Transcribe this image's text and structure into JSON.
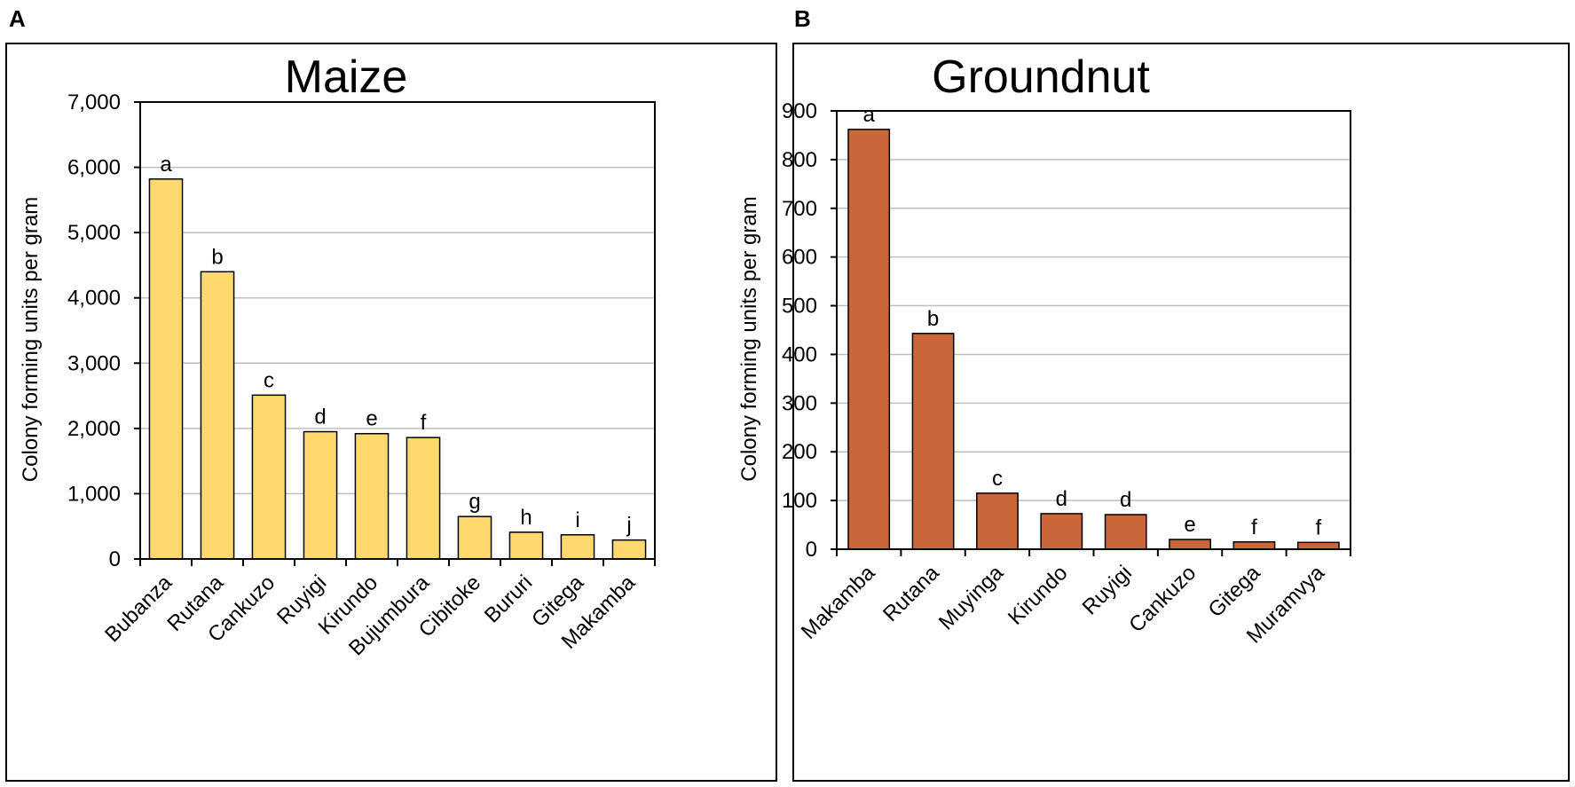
{
  "panels": {
    "a_label": "A",
    "b_label": "B"
  },
  "chart_data": [
    {
      "type": "bar",
      "panel": "A",
      "title": "Maize",
      "ylabel": "Colony forming units per gram",
      "xlabel": "",
      "ylim": [
        0,
        7000
      ],
      "yticks": [
        0,
        1000,
        2000,
        3000,
        4000,
        5000,
        6000,
        7000
      ],
      "ytick_labels": [
        "0",
        "1,000",
        "2,000",
        "3,000",
        "4,000",
        "5,000",
        "6,000",
        "7,000"
      ],
      "grid": true,
      "bar_color": "#fdd96e",
      "categories": [
        "Bubanza",
        "Rutana",
        "Cankuzo",
        "Ruyigi",
        "Kirundo",
        "Bujumbura",
        "Cibitoke",
        "Bururi",
        "Gitega",
        "Makamba"
      ],
      "values": [
        5820,
        4400,
        2510,
        1950,
        1920,
        1860,
        650,
        410,
        370,
        290
      ],
      "significance_letters": [
        "a",
        "b",
        "c",
        "d",
        "e",
        "f",
        "g",
        "h",
        "i",
        "j"
      ]
    },
    {
      "type": "bar",
      "panel": "B",
      "title": "Groundnut",
      "ylabel": "Colony forming units per gram",
      "xlabel": "",
      "ylim": [
        0,
        900
      ],
      "yticks": [
        0,
        100,
        200,
        300,
        400,
        500,
        600,
        700,
        800,
        900
      ],
      "ytick_labels": [
        "0",
        "100",
        "200",
        "300",
        "400",
        "500",
        "600",
        "700",
        "800",
        "900"
      ],
      "grid": true,
      "bar_color": "#c9663a",
      "categories": [
        "Makamba",
        "Rutana",
        "Muyinga",
        "Kirundo",
        "Ruyigi",
        "Cankuzo",
        "Gitega",
        "Muramvya"
      ],
      "values": [
        862,
        443,
        115,
        73,
        71,
        20,
        15,
        14
      ],
      "significance_letters": [
        "a",
        "b",
        "c",
        "d",
        "d",
        "e",
        "f",
        "f"
      ]
    }
  ]
}
